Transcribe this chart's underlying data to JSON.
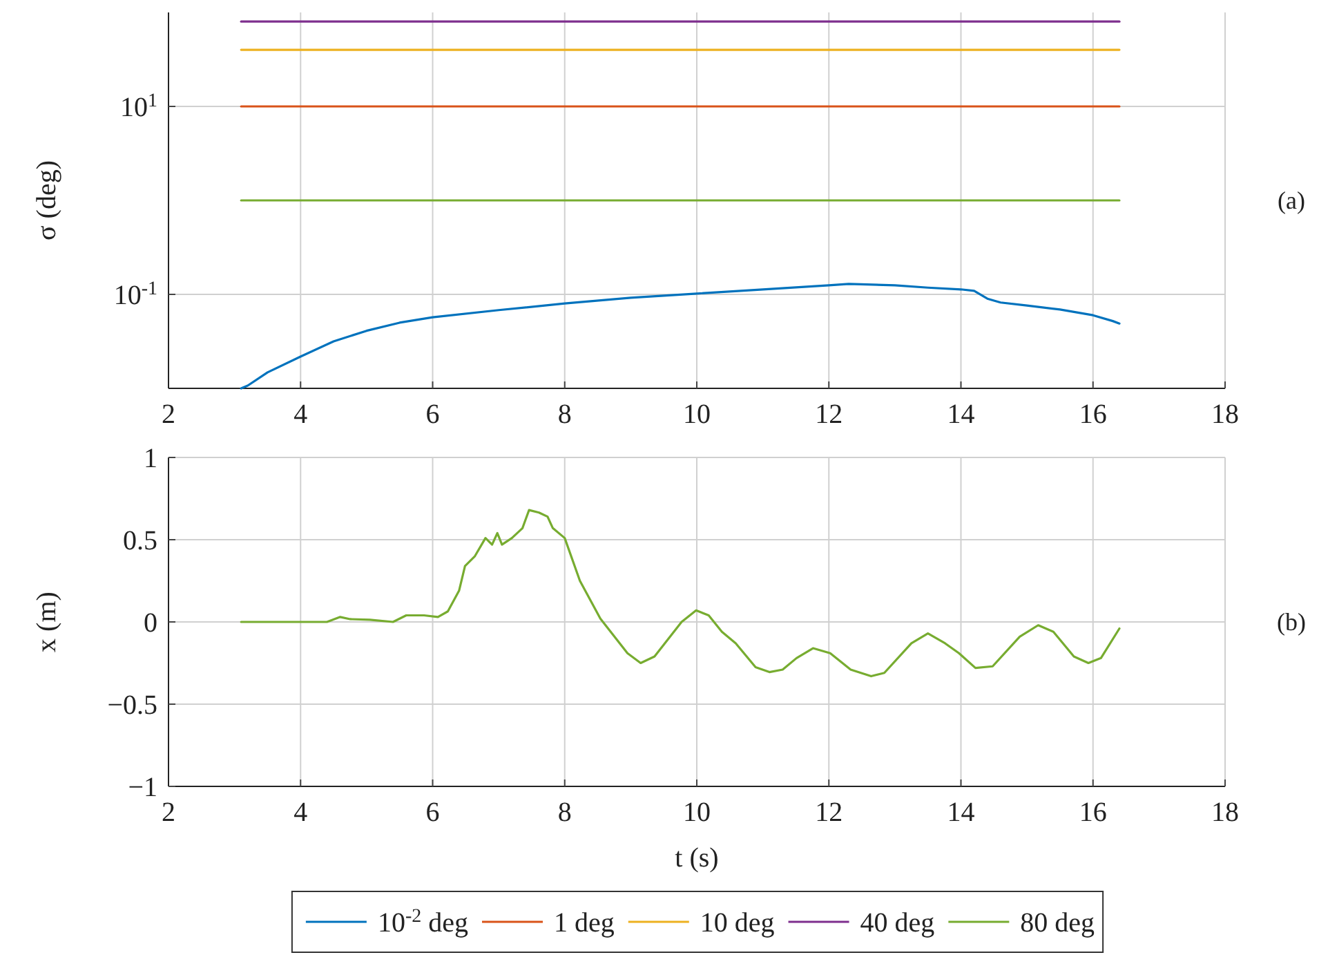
{
  "chart_data": [
    {
      "type": "line",
      "ylabel": "σ (deg)",
      "log": "y",
      "grid": true,
      "legend": "bottom",
      "xlim": [
        2,
        18
      ],
      "xticks": [
        2,
        4,
        6,
        8,
        10,
        12,
        14,
        16,
        18
      ],
      "ylim": [
        0.01,
        100
      ],
      "yticks": [
        {
          "value": 10,
          "label": "10$^{1}$"
        },
        {
          "value": 0.1,
          "label": "10$^{-1}$"
        }
      ],
      "annotations": [
        "(a)"
      ],
      "series": [
        {
          "name": "10$^{-2}$ deg",
          "color": "#0072bd",
          "x": [
            3.1,
            3.2,
            3.5,
            4,
            4.5,
            5,
            5.5,
            6,
            7,
            8,
            9,
            10,
            11,
            12,
            12.3,
            13,
            13.5,
            14,
            14.2,
            14.4,
            14.6,
            15,
            15.5,
            16,
            16.3,
            16.4
          ],
          "values": [
            0.01,
            0.0107,
            0.0148,
            0.0218,
            0.0316,
            0.041,
            0.05,
            0.057,
            0.068,
            0.08,
            0.092,
            0.102,
            0.113,
            0.125,
            0.129,
            0.125,
            0.118,
            0.113,
            0.109,
            0.09,
            0.082,
            0.076,
            0.069,
            0.06,
            0.052,
            0.049
          ]
        },
        {
          "name": "1 deg",
          "color": "#d95319",
          "x": [
            3.1,
            16.4
          ],
          "values": [
            10,
            10
          ]
        },
        {
          "name": "10 deg",
          "color": "#edb120",
          "x": [
            3.1,
            16.4
          ],
          "values": [
            40,
            40
          ]
        },
        {
          "name": "40 deg",
          "color": "#7e2f8e",
          "x": [
            3.1,
            16.4
          ],
          "values": [
            80,
            80
          ]
        },
        {
          "name": "80 deg",
          "color": "#77ac30",
          "x": [
            3.1,
            16.4
          ],
          "values": [
            1,
            1
          ]
        }
      ]
    },
    {
      "type": "line",
      "xlabel": "t (s)",
      "ylabel": "x (m)",
      "grid": true,
      "xlim": [
        2,
        18
      ],
      "xticks": [
        2,
        4,
        6,
        8,
        10,
        12,
        14,
        16,
        18
      ],
      "ylim": [
        -1,
        1
      ],
      "yticks": [
        -1,
        -0.5,
        0,
        0.5,
        1
      ],
      "annotations": [
        "(b)"
      ],
      "series": [
        {
          "color": "#77ac30",
          "x": [
            3.1,
            4.03,
            4.4,
            4.6,
            4.75,
            5.05,
            5.4,
            5.6,
            5.87,
            6.08,
            6.23,
            6.4,
            6.49,
            6.64,
            6.8,
            6.9,
            6.98,
            7.05,
            7.2,
            7.36,
            7.46,
            7.61,
            7.74,
            7.82,
            8.0,
            8.23,
            8.54,
            8.95,
            9.15,
            9.36,
            9.77,
            9.99,
            10.18,
            10.38,
            10.59,
            10.89,
            11.1,
            11.3,
            11.51,
            11.76,
            12.02,
            12.33,
            12.64,
            12.84,
            13.25,
            13.5,
            13.76,
            13.97,
            14.22,
            14.48,
            14.89,
            15.17,
            15.4,
            15.71,
            15.93,
            16.12,
            16.4
          ],
          "values": [
            0,
            0,
            0,
            0.03,
            0.017,
            0.013,
            0,
            0.04,
            0.04,
            0.03,
            0.064,
            0.19,
            0.34,
            0.4,
            0.51,
            0.47,
            0.54,
            0.47,
            0.51,
            0.57,
            0.68,
            0.665,
            0.64,
            0.57,
            0.51,
            0.25,
            0.02,
            -0.19,
            -0.25,
            -0.21,
            0,
            0.07,
            0.04,
            -0.06,
            -0.13,
            -0.275,
            -0.305,
            -0.29,
            -0.22,
            -0.16,
            -0.19,
            -0.29,
            -0.33,
            -0.31,
            -0.13,
            -0.07,
            -0.13,
            -0.19,
            -0.28,
            -0.27,
            -0.09,
            -0.02,
            -0.06,
            -0.21,
            -0.25,
            -0.22,
            -0.04
          ]
        }
      ]
    }
  ]
}
